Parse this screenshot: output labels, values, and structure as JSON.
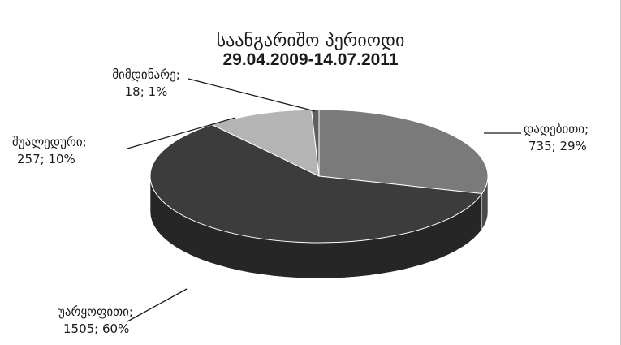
{
  "chart_data": {
    "type": "pie",
    "title": "საანგარიშო პერიოდი",
    "subtitle": "29.04.2009-14.07.2011",
    "slices": [
      {
        "label": "დადებითი;",
        "value": 735,
        "percent": "29%",
        "color": "#7a7a7a",
        "side": "#4a4a4a"
      },
      {
        "label": "უარყოფითი;",
        "value": 1505,
        "percent": "60%",
        "color": "#3c3c3c",
        "side": "#262626"
      },
      {
        "label": "შუალედური;",
        "value": 257,
        "percent": "10%",
        "color": "#b4b4b4",
        "side": "#8a8a8a"
      },
      {
        "label": "მიმდინარე;",
        "value": 18,
        "percent": "1%",
        "color": "#606060",
        "side": "#3a3a3a"
      }
    ],
    "legend": "none",
    "data_labels": "outside-with-leader-lines"
  }
}
